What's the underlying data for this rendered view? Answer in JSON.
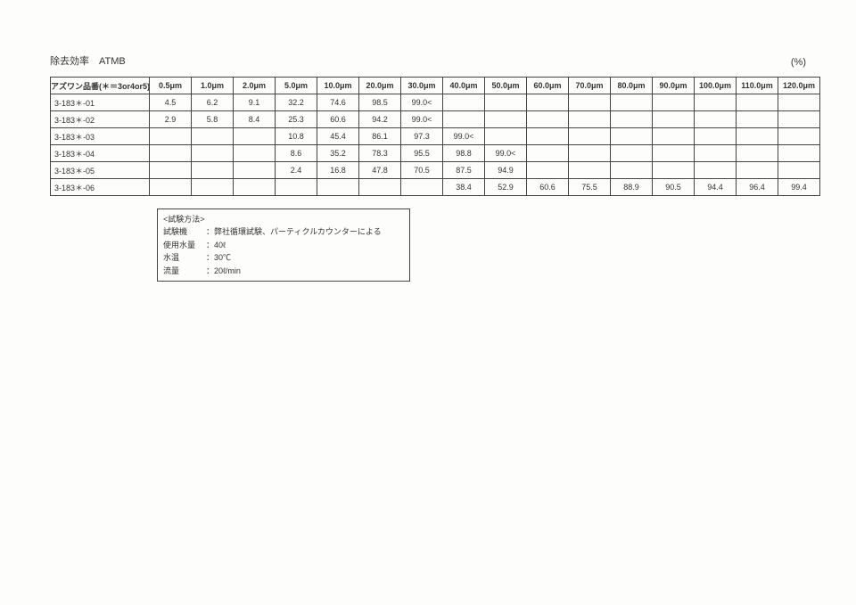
{
  "title_left": "除去効率　ATMB",
  "title_right": "(%)",
  "table": {
    "header_col1": "アズワン品番(＊＝3or4or5)",
    "columns": [
      "0.5μm",
      "1.0μm",
      "2.0μm",
      "5.0μm",
      "10.0μm",
      "20.0μm",
      "30.0μm",
      "40.0μm",
      "50.0μm",
      "60.0μm",
      "70.0μm",
      "80.0μm",
      "90.0μm",
      "100.0μm",
      "110.0μm",
      "120.0μm"
    ],
    "rows": [
      {
        "label": "3-183＊-01",
        "cells": [
          "4.5",
          "6.2",
          "9.1",
          "32.2",
          "74.6",
          "98.5",
          "99.0<",
          "",
          "",
          "",
          "",
          "",
          "",
          "",
          "",
          ""
        ]
      },
      {
        "label": "3-183＊-02",
        "cells": [
          "2.9",
          "5.8",
          "8.4",
          "25.3",
          "60.6",
          "94.2",
          "99.0<",
          "",
          "",
          "",
          "",
          "",
          "",
          "",
          "",
          ""
        ]
      },
      {
        "label": "3-183＊-03",
        "cells": [
          "",
          "",
          "",
          "10.8",
          "45.4",
          "86.1",
          "97.3",
          "99.0<",
          "",
          "",
          "",
          "",
          "",
          "",
          "",
          ""
        ]
      },
      {
        "label": "3-183＊-04",
        "cells": [
          "",
          "",
          "",
          "8.6",
          "35.2",
          "78.3",
          "95.5",
          "98.8",
          "99.0<",
          "",
          "",
          "",
          "",
          "",
          "",
          ""
        ]
      },
      {
        "label": "3-183＊-05",
        "cells": [
          "",
          "",
          "",
          "2.4",
          "16.8",
          "47.8",
          "70.5",
          "87.5",
          "94.9",
          "",
          "",
          "",
          "",
          "",
          "",
          ""
        ]
      },
      {
        "label": "3-183＊-06",
        "cells": [
          "",
          "",
          "",
          "",
          "",
          "",
          "",
          "38.4",
          "52.9",
          "60.6",
          "75.5",
          "88.9",
          "90.5",
          "94.4",
          "96.4",
          "99.4"
        ]
      }
    ]
  },
  "method": {
    "heading": "<試験方法>",
    "rows": [
      {
        "label": "試験機",
        "value": "：弊社循環試験、パーティクルカウンターによる"
      },
      {
        "label": "使用水量",
        "value": "：40ℓ"
      },
      {
        "label": "水温",
        "value": "：30℃"
      },
      {
        "label": "流量",
        "value": "：20ℓ/min"
      }
    ]
  }
}
